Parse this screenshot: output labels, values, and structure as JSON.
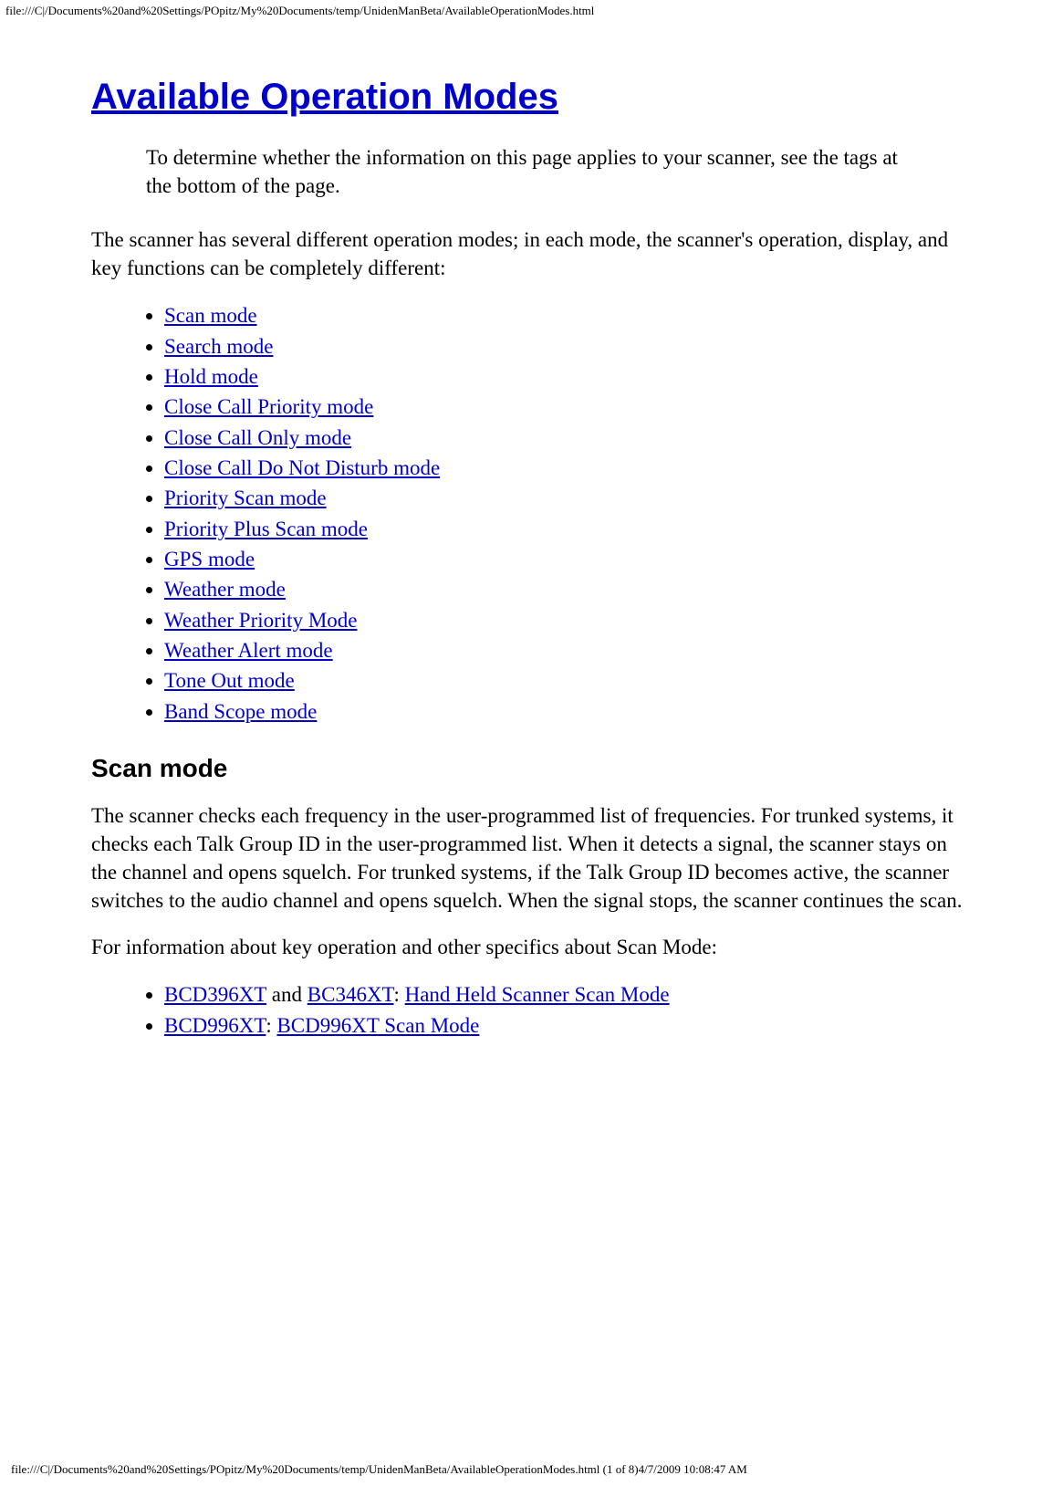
{
  "meta": {
    "header_path": "file:///C|/Documents%20and%20Settings/POpitz/My%20Documents/temp/UnidenManBeta/AvailableOperationModes.html",
    "footer_path": "file:///C|/Documents%20and%20Settings/POpitz/My%20Documents/temp/UnidenManBeta/AvailableOperationModes.html (1 of 8)4/7/2009 10:08:47 AM"
  },
  "title": "Available Operation Modes",
  "note": "To determine whether the information on this page applies to your scanner, see the tags at the bottom of the page.",
  "intro": "The scanner has several different operation modes; in each mode, the scanner's operation, display, and key functions can be completely different:",
  "modes": [
    "Scan mode",
    "Search mode",
    "Hold mode",
    "Close Call Priority mode",
    "Close Call Only mode",
    "Close Call Do Not Disturb mode",
    "Priority Scan mode",
    "Priority Plus Scan mode",
    "GPS mode",
    "Weather mode",
    "Weather Priority Mode",
    "Weather Alert mode",
    "Tone Out mode",
    "Band Scope mode"
  ],
  "scan": {
    "heading": "Scan mode",
    "p1": "The scanner checks each frequency in the user-programmed list of frequencies. For trunked systems, it checks each Talk Group ID in the user-programmed list. When it detects a signal, the scanner stays on the channel and opens squelch. For trunked systems, if the Talk Group ID becomes active, the scanner switches to the audio channel and opens squelch. When the signal stops, the scanner continues the scan.",
    "p2": "For information about key operation and other specifics about Scan Mode:",
    "refs": {
      "r1a": "BCD396XT",
      "r1and": " and ",
      "r1b": "BC346XT",
      "r1sep": ": ",
      "r1c": "Hand Held Scanner Scan Mode",
      "r2a": "BCD996XT",
      "r2sep": ": ",
      "r2b": "BCD996XT Scan Mode"
    }
  },
  "colors": {
    "link": "#0000cc",
    "text": "#000000",
    "bg": "#ffffff"
  }
}
